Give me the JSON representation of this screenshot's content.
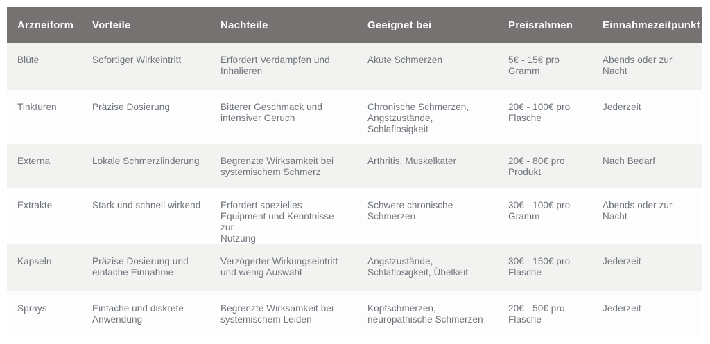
{
  "table": {
    "columns": [
      "Arzneiform",
      "Vorteile",
      "Nachteile",
      "Geeignet bei",
      "Preisrahmen",
      "Einnahmezeitpunkt"
    ],
    "rows": [
      [
        "Blüte",
        "Sofortiger Wirkeintritt",
        "Erfordert Verdampfen und\nInhalieren",
        "Akute Schmerzen",
        "5€ - 15€ pro\nGramm",
        "Abends oder zur\nNacht"
      ],
      [
        "Tinkturen",
        "Präzise Dosierung",
        "Bitterer Geschmack und\nintensiver Geruch",
        "Chronische Schmerzen,\nAngstzustände,\nSchlaflosigkeit",
        "20€ - 100€ pro\nFlasche",
        "Jederzeit"
      ],
      [
        "Externa",
        "Lokale Schmerzlinderung",
        "Begrenzte Wirksamkeit bei\nsystemischem Schmerz",
        "Arthritis, Muskelkater",
        "20€ - 80€ pro\nProdukt",
        "Nach Bedarf"
      ],
      [
        "Extrakte",
        "Stark und schnell wirkend",
        "Erfordert spezielles\nEquipment und Kenntnisse zur\nNutzung",
        "Schwere chronische\nSchmerzen",
        "30€ - 100€ pro\nGramm",
        "Abends oder zur\nNacht"
      ],
      [
        "Kapseln",
        "Präzise Dosierung und\neinfache Einnahme",
        "Verzögerter Wirkungseintritt\nund wenig Auswahl",
        "Angstzustände,\nSchlaflosigkeit, Übelkeit",
        "30€ - 150€ pro\nFlasche",
        "Jederzeit"
      ],
      [
        "Sprays",
        "Einfache und diskrete\nAnwendung",
        "Begrenzte Wirksamkeit bei\nsystemischem Leiden",
        "Kopfschmerzen,\nneuropathische Schmerzen",
        "20€ - 50€ pro\nFlasche",
        "Jederzeit"
      ]
    ]
  },
  "colors": {
    "header_bg": "#757271",
    "header_text": "#fafafa",
    "row_alt_bg": "#f2f2f0",
    "row_bg": "#fdfdfd",
    "body_text": "#6d737a",
    "page_bg": "#ffffff"
  }
}
